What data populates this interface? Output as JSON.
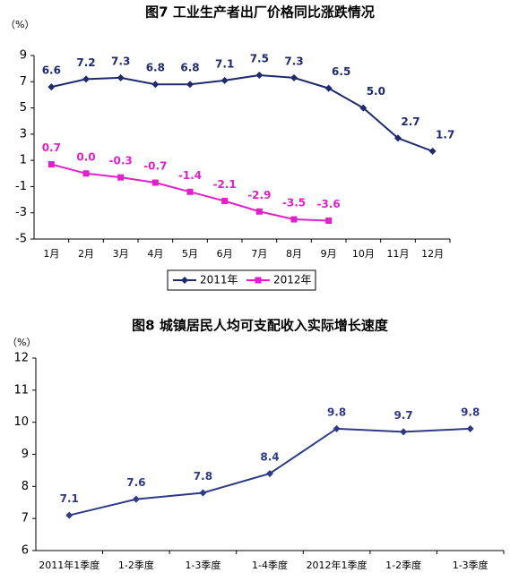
{
  "chart_data": [
    {
      "type": "line",
      "title": "图7 工业生产者出厂价格同比涨跌情况",
      "y_label": "（%）",
      "categories": [
        "1月",
        "2月",
        "3月",
        "4月",
        "5月",
        "6月",
        "7月",
        "8月",
        "9月",
        "10月",
        "11月",
        "12月"
      ],
      "series": [
        {
          "name": "2011年",
          "color": "#1f2a6e",
          "marker": "diamond",
          "values": [
            6.6,
            7.2,
            7.3,
            6.8,
            6.8,
            7.1,
            7.5,
            7.3,
            6.5,
            5.0,
            2.7,
            1.7
          ],
          "value_labels": [
            "6.6",
            "7.2",
            "7.3",
            "6.8",
            "6.8",
            "7.1",
            "7.5",
            "7.3",
            "6.5",
            "5.0",
            "2.7",
            "1.7"
          ]
        },
        {
          "name": "2012年",
          "color": "#e020c8",
          "marker": "square",
          "values": [
            0.7,
            0.0,
            -0.3,
            -0.7,
            -1.4,
            -2.1,
            -2.9,
            -3.5,
            -3.6,
            null,
            null,
            null
          ],
          "value_labels": [
            "0.7",
            "0.0",
            "-0.3",
            "-0.7",
            "-1.4",
            "-2.1",
            "-2.9",
            "-3.5",
            "-3.6",
            null,
            null,
            null
          ]
        }
      ],
      "ylim": [
        -5,
        9
      ],
      "yticks": [
        -5,
        -3,
        -1,
        1,
        3,
        5,
        7,
        9
      ],
      "grid": false,
      "legend": "bottom"
    },
    {
      "type": "line",
      "title": "图8 城镇居民人均可支配收入实际增长速度",
      "y_label": "（%）",
      "categories": [
        "2011年1季度",
        "1-2季度",
        "1-3季度",
        "1-4季度",
        "2012年1季度",
        "1-2季度",
        "1-3季度"
      ],
      "series": [
        {
          "color": "#2e3a87",
          "marker": "diamond",
          "values": [
            7.1,
            7.6,
            7.8,
            8.4,
            9.8,
            9.7,
            9.8
          ]
        }
      ],
      "ylim": [
        6,
        12
      ],
      "yticks": [
        6,
        7,
        8,
        9,
        10,
        11,
        12
      ],
      "grid": false
    }
  ]
}
